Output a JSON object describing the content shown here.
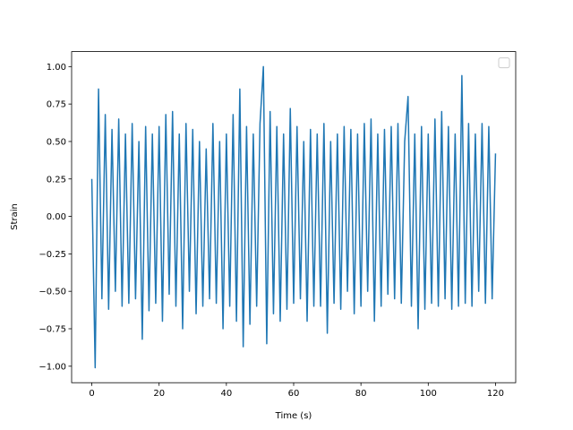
{
  "chart_data": {
    "type": "line",
    "xlabel": "Time (s)",
    "ylabel": "Strain",
    "x": [
      0,
      1,
      2,
      3,
      4,
      5,
      6,
      7,
      8,
      9,
      10,
      11,
      12,
      13,
      14,
      15,
      16,
      17,
      18,
      19,
      20,
      21,
      22,
      23,
      24,
      25,
      26,
      27,
      28,
      29,
      30,
      31,
      32,
      33,
      34,
      35,
      36,
      37,
      38,
      39,
      40,
      41,
      42,
      43,
      44,
      45,
      46,
      47,
      48,
      49,
      50,
      51,
      52,
      53,
      54,
      55,
      56,
      57,
      58,
      59,
      60,
      61,
      62,
      63,
      64,
      65,
      66,
      67,
      68,
      69,
      70,
      71,
      72,
      73,
      74,
      75,
      76,
      77,
      78,
      79,
      80,
      81,
      82,
      83,
      84,
      85,
      86,
      87,
      88,
      89,
      90,
      91,
      92,
      93,
      94,
      95,
      96,
      97,
      98,
      99,
      100,
      101,
      102,
      103,
      104,
      105,
      106,
      107,
      108,
      109,
      110,
      111,
      112,
      113,
      114,
      115,
      116,
      117,
      118,
      119,
      120
    ],
    "series": [
      {
        "color": "#1f77b4",
        "values": [
          0.25,
          -1.01,
          0.85,
          -0.55,
          0.68,
          -0.62,
          0.58,
          -0.5,
          0.65,
          -0.6,
          0.55,
          -0.58,
          0.62,
          -0.55,
          0.5,
          -0.82,
          0.6,
          -0.63,
          0.55,
          -0.58,
          0.6,
          -0.7,
          0.68,
          -0.52,
          0.7,
          -0.6,
          0.55,
          -0.75,
          0.62,
          -0.5,
          0.58,
          -0.65,
          0.5,
          -0.6,
          0.45,
          -0.55,
          0.62,
          -0.58,
          0.5,
          -0.75,
          0.55,
          -0.6,
          0.68,
          -0.7,
          0.85,
          -0.87,
          0.6,
          -0.72,
          0.55,
          -0.6,
          0.62,
          1.0,
          -0.85,
          0.7,
          -0.65,
          0.6,
          -0.7,
          0.55,
          -0.62,
          0.72,
          -0.58,
          0.6,
          -0.55,
          0.5,
          -0.7,
          0.58,
          -0.6,
          0.55,
          -0.6,
          0.62,
          -0.78,
          0.5,
          -0.58,
          0.55,
          -0.62,
          0.6,
          -0.5,
          0.58,
          -0.65,
          0.55,
          -0.6,
          0.62,
          -0.5,
          0.65,
          -0.7,
          0.55,
          -0.6,
          0.58,
          -0.52,
          0.6,
          -0.55,
          0.62,
          -0.58,
          0.5,
          0.8,
          -0.6,
          0.55,
          -0.75,
          0.6,
          -0.62,
          0.55,
          -0.58,
          0.65,
          -0.6,
          0.7,
          -0.55,
          0.6,
          -0.62,
          0.55,
          -0.6,
          0.94,
          -0.58,
          0.62,
          -0.6,
          0.55,
          -0.5,
          0.62,
          -0.58,
          0.6,
          -0.55,
          0.42
        ]
      }
    ],
    "xlim": [
      -6,
      126
    ],
    "xticks": [
      0,
      20,
      40,
      60,
      80,
      100,
      120
    ],
    "ylim": [
      -1.11,
      1.1
    ],
    "yticks": [
      {
        "value": -1,
        "label": "−1.00"
      },
      {
        "value": -0.75,
        "label": "−0.75"
      },
      {
        "value": -0.5,
        "label": "−0.50"
      },
      {
        "value": -0.25,
        "label": "−0.25"
      },
      {
        "value": 0,
        "label": "0.00"
      },
      {
        "value": 0.25,
        "label": "0.25"
      },
      {
        "value": 0.5,
        "label": "0.50"
      },
      {
        "value": 0.75,
        "label": "0.75"
      },
      {
        "value": 1,
        "label": "1.00"
      }
    ],
    "legend": "upper right"
  }
}
